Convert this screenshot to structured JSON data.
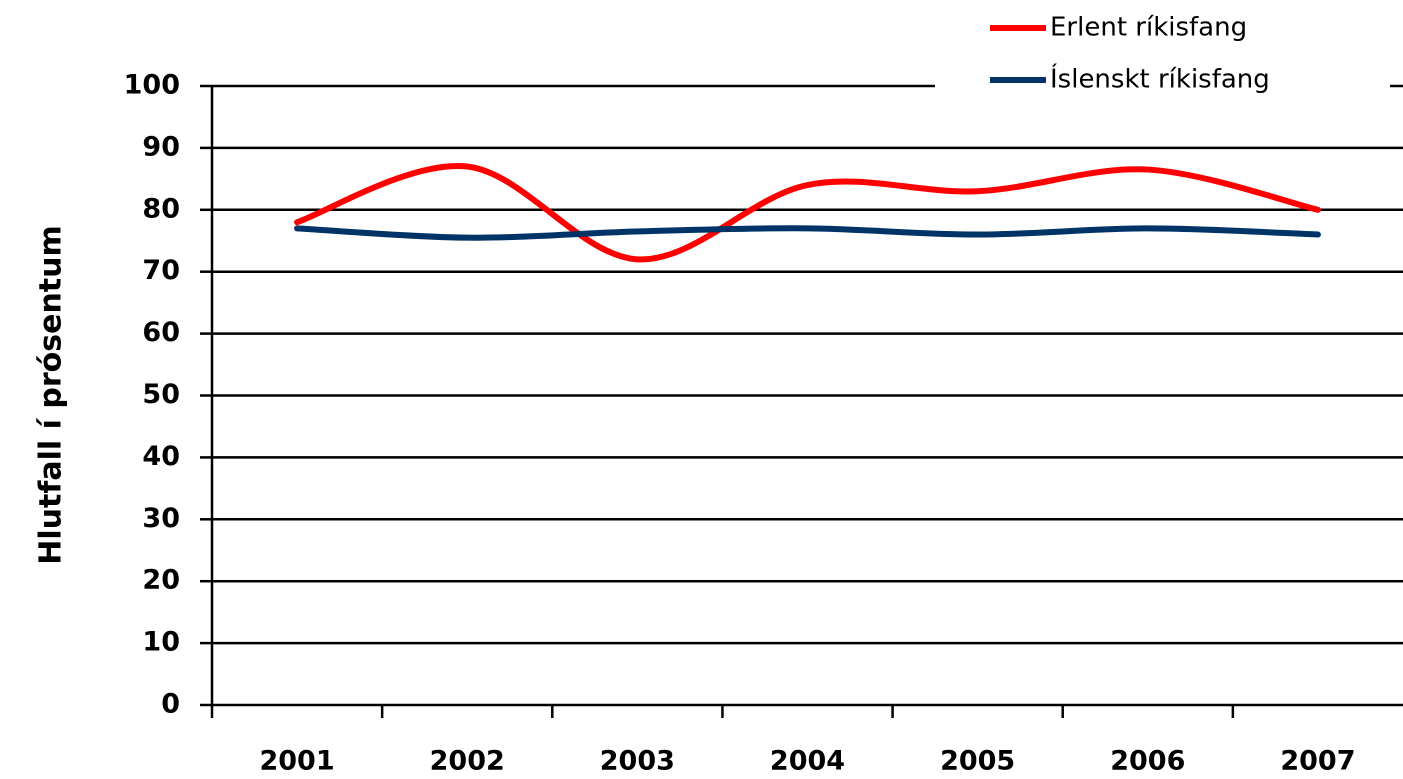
{
  "chart_data": {
    "type": "line",
    "ylabel": "Hlutfall í prósentum",
    "categories": [
      "2001",
      "2002",
      "2003",
      "2004",
      "2005",
      "2006",
      "2007"
    ],
    "series": [
      {
        "name": "Erlent ríkisfang",
        "color": "#ff0000",
        "values": [
          78,
          87,
          72,
          84,
          83,
          86.5,
          80
        ]
      },
      {
        "name": "Íslenskt ríkisfang",
        "color": "#003366",
        "values": [
          77,
          75.5,
          76.5,
          77,
          76,
          77,
          76
        ]
      }
    ],
    "ylim": [
      0,
      100
    ],
    "yticks": [
      0,
      10,
      20,
      30,
      40,
      50,
      60,
      70,
      80,
      90,
      100
    ],
    "grid": true,
    "legend": "top-right",
    "smooth": true
  }
}
